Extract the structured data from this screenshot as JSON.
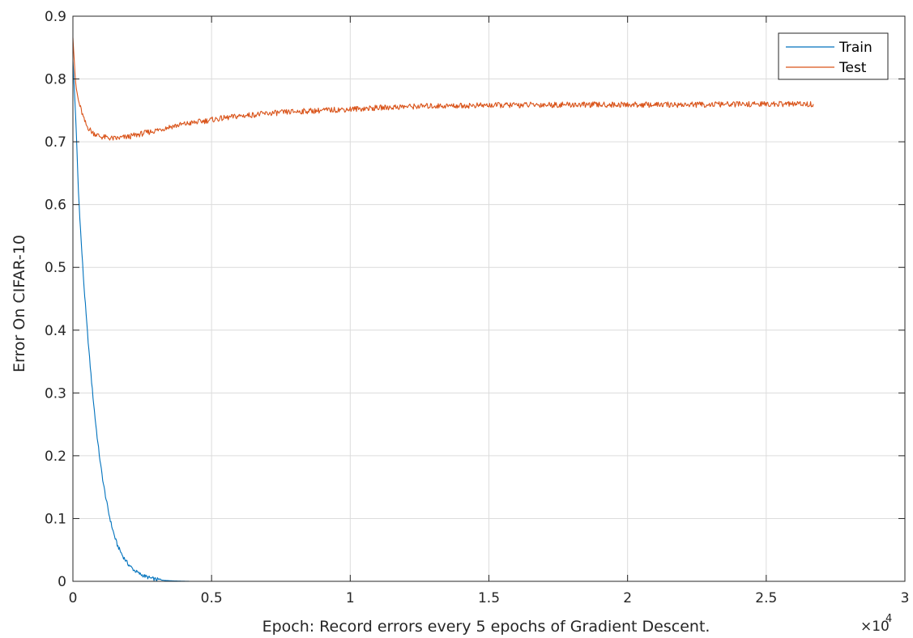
{
  "chart_data": {
    "type": "line",
    "title": "",
    "xlabel": "Epoch: Record errors every 5 epochs of Gradient Descent.",
    "ylabel": "Error On CIFAR-10",
    "xlim": [
      0,
      30000
    ],
    "ylim": [
      0,
      0.9
    ],
    "x_ticks": [
      0,
      5000,
      10000,
      15000,
      20000,
      25000,
      30000
    ],
    "x_tick_labels": [
      "0",
      "0.5",
      "1",
      "1.5",
      "2",
      "2.5",
      "3"
    ],
    "x_exponent_label": "×10",
    "x_exponent_power": "4",
    "y_ticks": [
      0,
      0.1,
      0.2,
      0.3,
      0.4,
      0.5,
      0.6,
      0.7,
      0.8,
      0.9
    ],
    "y_tick_labels": [
      "0",
      "0.1",
      "0.2",
      "0.3",
      "0.4",
      "0.5",
      "0.6",
      "0.7",
      "0.8",
      "0.9"
    ],
    "grid": true,
    "legend_position": "top-right",
    "series": [
      {
        "name": "Train",
        "color": "#0072BD",
        "x": [
          0,
          100,
          200,
          300,
          400,
          500,
          600,
          700,
          800,
          900,
          1000,
          1100,
          1200,
          1300,
          1400,
          1500,
          1600,
          1800,
          2000,
          2200,
          2400,
          2600,
          2800,
          3000,
          3300,
          3600,
          4000,
          4200,
          5000,
          10000,
          15000,
          20000,
          25000,
          26700
        ],
        "y": [
          0.83,
          0.74,
          0.62,
          0.54,
          0.47,
          0.41,
          0.355,
          0.305,
          0.26,
          0.22,
          0.185,
          0.155,
          0.13,
          0.107,
          0.088,
          0.072,
          0.058,
          0.04,
          0.027,
          0.018,
          0.012,
          0.008,
          0.005,
          0.003,
          0.0015,
          0.0007,
          0.0002,
          0.0,
          0.0,
          0.0,
          0.0,
          0.0,
          0.0,
          0.0
        ]
      },
      {
        "name": "Test",
        "color": "#D95319",
        "x": [
          0,
          100,
          200,
          300,
          400,
          500,
          700,
          1000,
          1500,
          2000,
          2500,
          3000,
          3500,
          4000,
          5000,
          6000,
          7000,
          8000,
          9000,
          10000,
          11000,
          12000,
          13000,
          15000,
          17000,
          20000,
          22000,
          25000,
          26700
        ],
        "y": [
          0.87,
          0.79,
          0.765,
          0.75,
          0.735,
          0.725,
          0.715,
          0.708,
          0.705,
          0.708,
          0.713,
          0.718,
          0.724,
          0.728,
          0.735,
          0.741,
          0.745,
          0.748,
          0.75,
          0.752,
          0.754,
          0.756,
          0.757,
          0.758,
          0.759,
          0.759,
          0.759,
          0.76,
          0.76
        ]
      }
    ]
  }
}
